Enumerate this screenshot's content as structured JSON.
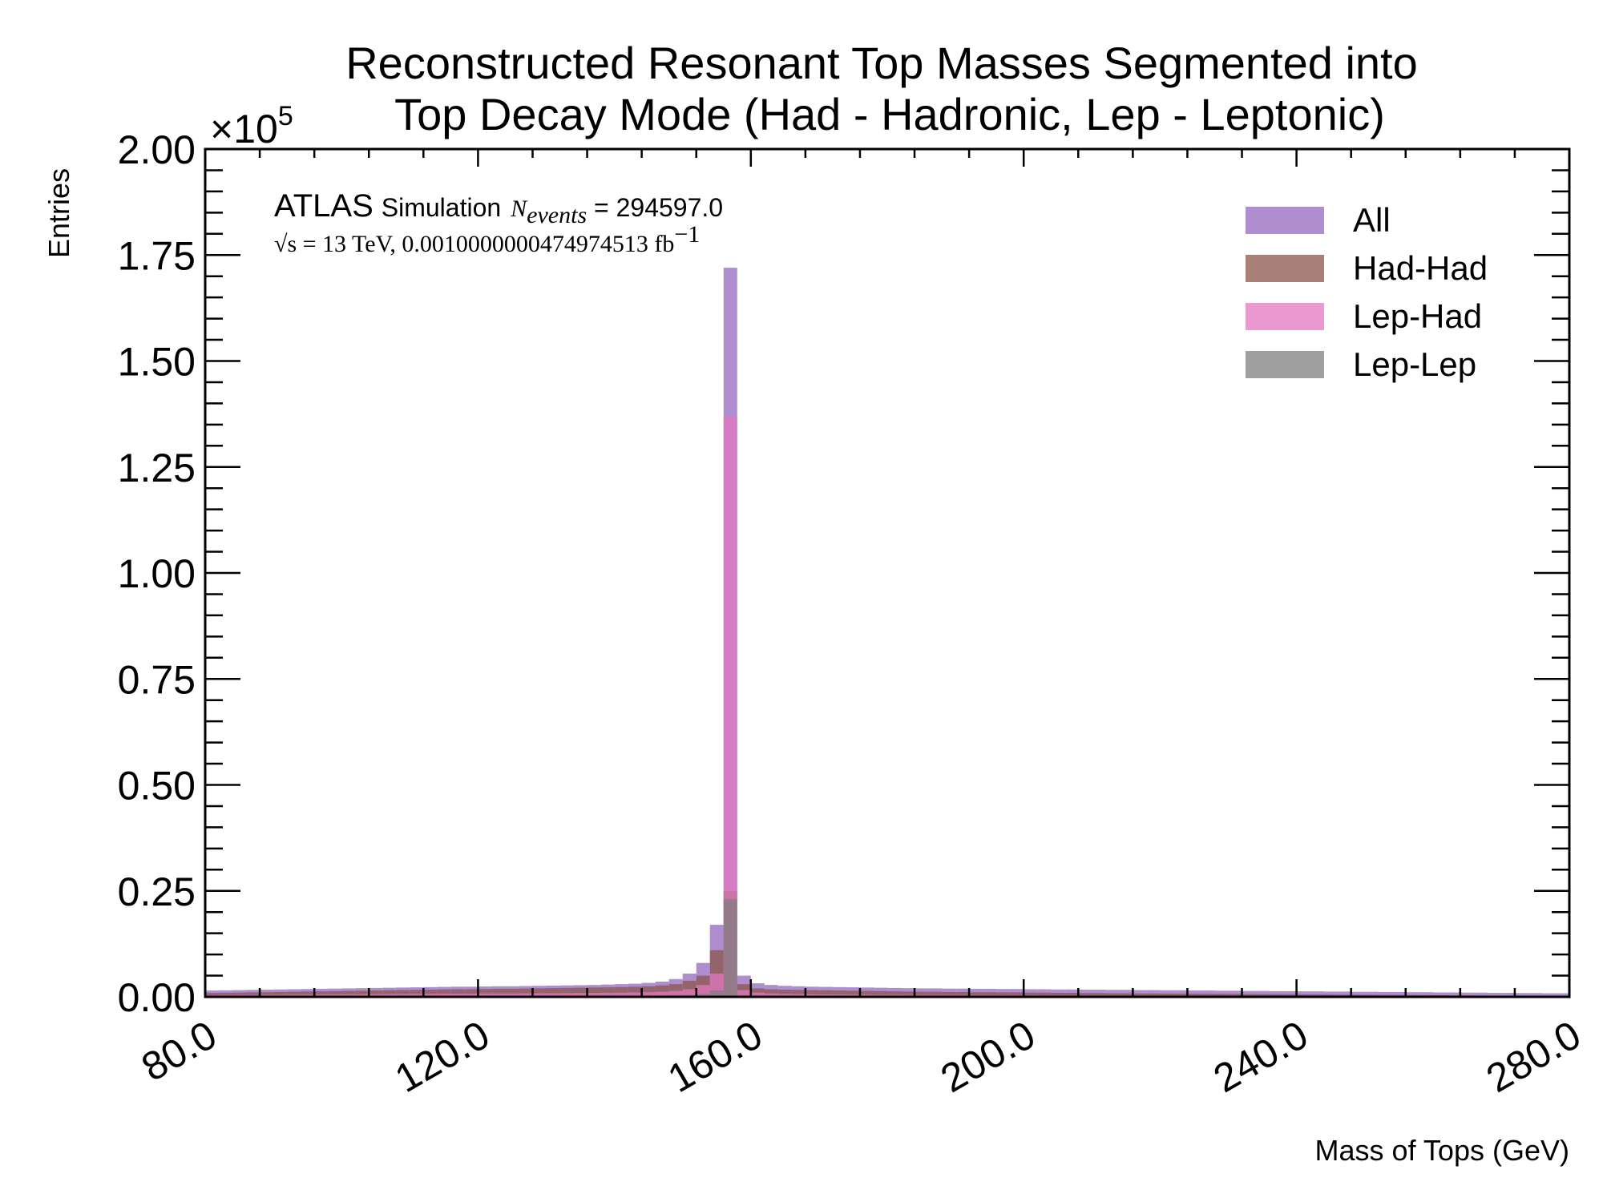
{
  "chart_data": {
    "type": "bar",
    "title_line1": "Reconstructed Resonant Top Masses Segmented into",
    "title_line2": "Top Decay Mode (Had - Hadronic, Lep - Leptonic)",
    "xlabel": "Mass of Tops (GeV)",
    "ylabel": "Entries",
    "y_multiplier": "×10",
    "y_multiplier_exp": "5",
    "xlim": [
      80,
      280
    ],
    "ylim": [
      0,
      200000
    ],
    "x_ticks": [
      "80.0",
      "120.0",
      "160.0",
      "200.0",
      "240.0",
      "280.0"
    ],
    "x_tick_values": [
      80,
      120,
      160,
      200,
      240,
      280
    ],
    "y_ticks": [
      "0.00",
      "0.25",
      "0.50",
      "0.75",
      "1.00",
      "1.25",
      "1.50",
      "1.75",
      "2.00"
    ],
    "y_tick_values": [
      0,
      25000,
      50000,
      75000,
      100000,
      125000,
      150000,
      175000,
      200000
    ],
    "grid": false,
    "legend_position": "top-right",
    "atlas_label": "ATLAS",
    "atlas_sublabel": "Simulation",
    "nevents_label": "N",
    "nevents_sub": "events",
    "nevents_value": " = 294597.0",
    "energy_label": "√s = 13 TeV, 0.0010000000474974513 fb",
    "energy_exp": "−1",
    "bin_edges_start": 80,
    "bin_width": 2,
    "series": [
      {
        "name": "All",
        "color": "#9467bd",
        "values": [
          1500,
          1550,
          1600,
          1650,
          1700,
          1750,
          1800,
          1850,
          1900,
          1950,
          2000,
          2050,
          2100,
          2150,
          2200,
          2250,
          2300,
          2350,
          2400,
          2400,
          2450,
          2500,
          2500,
          2550,
          2600,
          2650,
          2700,
          2750,
          2800,
          2900,
          3000,
          3100,
          3300,
          3600,
          4200,
          5500,
          8000,
          17000,
          172000,
          5000,
          3200,
          2800,
          2600,
          2500,
          2400,
          2350,
          2300,
          2250,
          2200,
          2150,
          2100,
          2050,
          2000,
          2000,
          1950,
          1950,
          1900,
          1900,
          1850,
          1850,
          1800,
          1800,
          1750,
          1750,
          1700,
          1700,
          1650,
          1650,
          1600,
          1600,
          1550,
          1550,
          1500,
          1500,
          1450,
          1450,
          1400,
          1400,
          1350,
          1350,
          1300,
          1300,
          1250,
          1250,
          1200,
          1200,
          1150,
          1150,
          1100,
          1100,
          1050,
          1050,
          1000,
          1000,
          950,
          950,
          900,
          900,
          850,
          850
        ]
      },
      {
        "name": "Had-Had",
        "color": "#8c564b",
        "values": [
          900,
          950,
          1000,
          1050,
          1100,
          1150,
          1200,
          1250,
          1300,
          1350,
          1400,
          1450,
          1500,
          1550,
          1600,
          1650,
          1700,
          1750,
          1800,
          1800,
          1850,
          1900,
          1900,
          1950,
          2000,
          2050,
          2100,
          2150,
          2200,
          2250,
          2300,
          2400,
          2500,
          2700,
          3000,
          3800,
          5000,
          11000,
          25000,
          3000,
          2000,
          1800,
          1700,
          1650,
          1600,
          1550,
          1500,
          1450,
          1400,
          1350,
          1300,
          1250,
          1200,
          1200,
          1150,
          1150,
          1100,
          1100,
          1050,
          1050,
          1000,
          1000,
          950,
          950,
          900,
          900,
          850,
          850,
          800,
          800,
          780,
          760,
          740,
          720,
          700,
          680,
          660,
          640,
          620,
          600,
          580,
          560,
          540,
          520,
          500,
          480,
          460,
          440,
          420,
          400,
          380,
          360,
          340,
          320,
          300,
          290,
          280,
          270,
          260,
          250
        ]
      },
      {
        "name": "Lep-Had",
        "color": "#e377c2",
        "values": [
          400,
          420,
          440,
          460,
          480,
          500,
          520,
          540,
          560,
          580,
          600,
          620,
          640,
          660,
          680,
          700,
          720,
          740,
          760,
          760,
          780,
          800,
          800,
          820,
          840,
          860,
          880,
          900,
          920,
          960,
          1000,
          1050,
          1100,
          1200,
          1400,
          1800,
          2800,
          5500,
          137000,
          1600,
          1000,
          800,
          700,
          650,
          600,
          580,
          560,
          540,
          520,
          500,
          480,
          460,
          440,
          430,
          420,
          410,
          400,
          390,
          380,
          370,
          360,
          350,
          340,
          330,
          320,
          310,
          300,
          290,
          280,
          270,
          260,
          250,
          240,
          230,
          220,
          210,
          200,
          190,
          180,
          170,
          160,
          150,
          140,
          130,
          120,
          110,
          100,
          95,
          90,
          85,
          80,
          75,
          70,
          65,
          60,
          55,
          50,
          45,
          40,
          35
        ]
      },
      {
        "name": "Lep-Lep",
        "color": "#7f7f7f",
        "values": [
          100,
          105,
          110,
          115,
          120,
          125,
          130,
          135,
          140,
          145,
          150,
          155,
          160,
          165,
          170,
          175,
          180,
          185,
          190,
          190,
          195,
          200,
          200,
          205,
          210,
          215,
          220,
          225,
          230,
          240,
          250,
          260,
          280,
          300,
          350,
          450,
          700,
          1500,
          23000,
          300,
          200,
          180,
          170,
          160,
          150,
          145,
          140,
          135,
          130,
          125,
          120,
          115,
          110,
          108,
          106,
          104,
          102,
          100,
          98,
          96,
          94,
          92,
          90,
          88,
          86,
          84,
          82,
          80,
          78,
          76,
          74,
          72,
          70,
          68,
          66,
          64,
          62,
          60,
          58,
          56,
          54,
          52,
          50,
          48,
          46,
          44,
          42,
          40,
          38,
          36,
          34,
          32,
          30,
          28,
          26,
          24,
          22,
          20,
          18,
          16
        ]
      }
    ]
  }
}
